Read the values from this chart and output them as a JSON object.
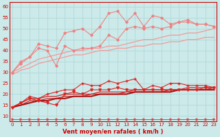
{
  "xlabel": "Vent moyen/en rafales ( km/h )",
  "background_color": "#cceaea",
  "grid_color": "#b0d8d8",
  "x": [
    0,
    1,
    2,
    3,
    4,
    5,
    6,
    7,
    8,
    9,
    10,
    11,
    12,
    13,
    14,
    15,
    16,
    17,
    18,
    19,
    20,
    21,
    22,
    23
  ],
  "lines": [
    {
      "name": "rafales_high",
      "color": "#f08080",
      "lw": 0.8,
      "marker": "D",
      "ms": 1.8,
      "y": [
        30,
        35,
        37,
        43,
        42,
        41,
        48,
        49,
        50,
        47,
        51,
        57,
        58,
        53,
        57,
        51,
        56,
        55,
        52,
        53,
        53,
        52,
        52,
        51
      ]
    },
    {
      "name": "rafales_med1",
      "color": "#f08080",
      "lw": 0.8,
      "marker": "D",
      "ms": 1.8,
      "y": [
        30,
        34,
        37,
        41,
        40,
        33,
        42,
        40,
        41,
        41,
        42,
        47,
        45,
        50,
        51,
        50,
        51,
        50,
        51,
        53,
        54,
        52,
        52,
        51
      ]
    },
    {
      "name": "line_upper_smooth",
      "color": "#f0a0a0",
      "lw": 1.0,
      "marker": null,
      "ms": 0,
      "y": [
        30,
        32,
        34,
        36,
        37,
        38,
        39,
        40,
        40,
        41,
        41,
        42,
        42,
        43,
        44,
        45,
        45,
        46,
        47,
        47,
        48,
        48,
        49,
        50
      ]
    },
    {
      "name": "line_lower_smooth",
      "color": "#f0a0a0",
      "lw": 1.0,
      "marker": null,
      "ms": 0,
      "y": [
        29,
        31,
        32,
        34,
        35,
        36,
        37,
        38,
        38,
        39,
        40,
        40,
        41,
        41,
        42,
        42,
        43,
        43,
        44,
        44,
        45,
        45,
        46,
        46
      ]
    },
    {
      "name": "mean_high",
      "color": "#dd2222",
      "lw": 0.8,
      "marker": "+",
      "ms": 3.0,
      "y": [
        14,
        16,
        19,
        18,
        20,
        21,
        22,
        22,
        25,
        24,
        24,
        26,
        25,
        26,
        27,
        22,
        24,
        23,
        25,
        25,
        24,
        24,
        24,
        23
      ]
    },
    {
      "name": "mean_med",
      "color": "#dd2222",
      "lw": 0.8,
      "marker": "v",
      "ms": 2.5,
      "y": [
        14,
        16,
        18,
        17,
        16,
        15,
        20,
        21,
        20,
        22,
        22,
        22,
        23,
        22,
        22,
        22,
        22,
        22,
        22,
        22,
        22,
        22,
        23,
        23
      ]
    },
    {
      "name": "mean_smooth1",
      "color": "#cc3333",
      "lw": 1.0,
      "marker": null,
      "ms": 0,
      "y": [
        14,
        16,
        18,
        18,
        19,
        19,
        20,
        20,
        20,
        20,
        21,
        21,
        21,
        21,
        22,
        22,
        22,
        22,
        22,
        22,
        23,
        23,
        23,
        23
      ]
    },
    {
      "name": "mean_smooth2",
      "color": "#cc3333",
      "lw": 1.0,
      "marker": null,
      "ms": 0,
      "y": [
        14,
        15,
        17,
        17,
        18,
        18,
        19,
        19,
        19,
        20,
        20,
        20,
        20,
        21,
        21,
        21,
        21,
        21,
        22,
        22,
        22,
        22,
        22,
        23
      ]
    },
    {
      "name": "mean_smooth3",
      "color": "#aa1111",
      "lw": 1.5,
      "marker": null,
      "ms": 0,
      "y": [
        14,
        15,
        16,
        17,
        17,
        18,
        18,
        19,
        19,
        19,
        20,
        20,
        20,
        20,
        21,
        21,
        21,
        21,
        21,
        22,
        22,
        22,
        22,
        22
      ]
    },
    {
      "name": "arrow_line",
      "color": "#dd4444",
      "lw": 0.7,
      "marker": ">",
      "ms": 2.0,
      "y": [
        8.5,
        8.5,
        8.5,
        8.5,
        8.5,
        8.5,
        8.5,
        8.5,
        8.5,
        8.5,
        8.5,
        8.5,
        8.5,
        8.5,
        8.5,
        8.5,
        8.5,
        8.5,
        8.5,
        8.5,
        8.5,
        8.5,
        8.5,
        8.5
      ]
    }
  ],
  "ylim": [
    7.5,
    62
  ],
  "yticks": [
    10,
    15,
    20,
    25,
    30,
    35,
    40,
    45,
    50,
    55,
    60
  ],
  "ytick_labels": [
    "10",
    "15",
    "20",
    "25",
    "30",
    "35",
    "40",
    "45",
    "50",
    "55",
    "60"
  ],
  "xlim": [
    -0.3,
    23.3
  ],
  "xticks": [
    0,
    1,
    2,
    3,
    4,
    5,
    6,
    7,
    8,
    9,
    10,
    11,
    12,
    13,
    14,
    15,
    16,
    17,
    18,
    19,
    20,
    21,
    22,
    23
  ],
  "axis_fontsize": 6.0,
  "tick_fontsize": 5.0,
  "label_color": "#cc0000",
  "spine_color": "#cc0000"
}
